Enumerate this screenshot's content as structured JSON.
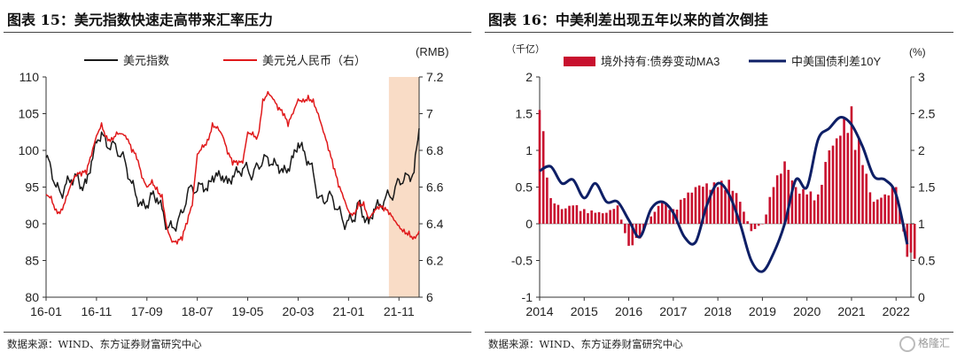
{
  "left": {
    "title": "图表 15：美元指数快速走高带来汇率压力",
    "source": "数据来源：WIND、东方证券财富研究中心",
    "chart_data": {
      "type": "line",
      "x_ticks": [
        "16-01",
        "16-11",
        "17-09",
        "18-07",
        "19-05",
        "20-03",
        "21-01",
        "21-11"
      ],
      "x_range": [
        "2016-01",
        "2022-03"
      ],
      "ylim_left": [
        80,
        110
      ],
      "yticks_left": [
        80,
        85,
        90,
        95,
        100,
        105,
        110
      ],
      "ylim_right": [
        6.0,
        7.2
      ],
      "yticks_right": [
        "6",
        "6.2",
        "6.4",
        "6.6",
        "6.8",
        "7",
        "7.2"
      ],
      "right_axis_unit": "(RMB)",
      "highlight": {
        "from": "2021-09",
        "to": "2022-03",
        "color": "#f9dcc6"
      },
      "legend_placement": "top",
      "series": [
        {
          "name": "美元指数",
          "axis": "left",
          "color": "#1a1a1a",
          "x": [
            "2016-01",
            "2016-02",
            "2016-03",
            "2016-04",
            "2016-05",
            "2016-06",
            "2016-07",
            "2016-08",
            "2016-09",
            "2016-10",
            "2016-11",
            "2016-12",
            "2017-01",
            "2017-02",
            "2017-03",
            "2017-04",
            "2017-05",
            "2017-06",
            "2017-07",
            "2017-08",
            "2017-09",
            "2017-10",
            "2017-11",
            "2017-12",
            "2018-01",
            "2018-02",
            "2018-03",
            "2018-04",
            "2018-05",
            "2018-06",
            "2018-07",
            "2018-08",
            "2018-09",
            "2018-10",
            "2018-11",
            "2018-12",
            "2019-01",
            "2019-02",
            "2019-03",
            "2019-04",
            "2019-05",
            "2019-06",
            "2019-07",
            "2019-08",
            "2019-09",
            "2019-10",
            "2019-11",
            "2019-12",
            "2020-01",
            "2020-02",
            "2020-03",
            "2020-04",
            "2020-05",
            "2020-06",
            "2020-07",
            "2020-08",
            "2020-09",
            "2020-10",
            "2020-11",
            "2020-12",
            "2021-01",
            "2021-02",
            "2021-03",
            "2021-04",
            "2021-05",
            "2021-06",
            "2021-07",
            "2021-08",
            "2021-09",
            "2021-10",
            "2021-11",
            "2021-12",
            "2022-01",
            "2022-02",
            "2022-03"
          ],
          "values": [
            99,
            97.5,
            95,
            94,
            95.5,
            96,
            96.5,
            95,
            95.5,
            98.5,
            101,
            102.5,
            100.5,
            101,
            100,
            99.5,
            97.5,
            95.5,
            93.5,
            92.5,
            92.5,
            94,
            93.5,
            92,
            89.5,
            89.5,
            90,
            91.5,
            94,
            95,
            94.5,
            95.5,
            94.5,
            96.5,
            96.5,
            96.5,
            95.5,
            96.5,
            97,
            97.5,
            97.5,
            96.5,
            98,
            98.5,
            99,
            98,
            98,
            97,
            97.5,
            99,
            101,
            100,
            98.5,
            97,
            93.5,
            93,
            94,
            93,
            92,
            90,
            90.5,
            90.5,
            93,
            91,
            90,
            92,
            92.5,
            93,
            94,
            94,
            96,
            96,
            96.5,
            97,
            103
          ]
        },
        {
          "name": "美元兑人民币（右）",
          "axis": "right",
          "color": "#e0191b",
          "x": [
            "2016-01",
            "2016-02",
            "2016-03",
            "2016-04",
            "2016-05",
            "2016-06",
            "2016-07",
            "2016-08",
            "2016-09",
            "2016-10",
            "2016-11",
            "2016-12",
            "2017-01",
            "2017-02",
            "2017-03",
            "2017-04",
            "2017-05",
            "2017-06",
            "2017-07",
            "2017-08",
            "2017-09",
            "2017-10",
            "2017-11",
            "2017-12",
            "2018-01",
            "2018-02",
            "2018-03",
            "2018-04",
            "2018-05",
            "2018-06",
            "2018-07",
            "2018-08",
            "2018-09",
            "2018-10",
            "2018-11",
            "2018-12",
            "2019-01",
            "2019-02",
            "2019-03",
            "2019-04",
            "2019-05",
            "2019-06",
            "2019-07",
            "2019-08",
            "2019-09",
            "2019-10",
            "2019-11",
            "2019-12",
            "2020-01",
            "2020-02",
            "2020-03",
            "2020-04",
            "2020-05",
            "2020-06",
            "2020-07",
            "2020-08",
            "2020-09",
            "2020-10",
            "2020-11",
            "2020-12",
            "2021-01",
            "2021-02",
            "2021-03",
            "2021-04",
            "2021-05",
            "2021-06",
            "2021-07",
            "2021-08",
            "2021-09",
            "2021-10",
            "2021-11",
            "2021-12",
            "2022-01",
            "2022-02",
            "2022-03"
          ],
          "values": [
            6.56,
            6.55,
            6.48,
            6.48,
            6.55,
            6.62,
            6.66,
            6.66,
            6.67,
            6.77,
            6.88,
            6.95,
            6.88,
            6.87,
            6.9,
            6.89,
            6.86,
            6.79,
            6.75,
            6.65,
            6.6,
            6.64,
            6.6,
            6.56,
            6.38,
            6.3,
            6.29,
            6.31,
            6.4,
            6.5,
            6.78,
            6.83,
            6.86,
            6.95,
            6.93,
            6.88,
            6.78,
            6.72,
            6.72,
            6.73,
            6.9,
            6.9,
            6.88,
            7.08,
            7.12,
            7.08,
            7.02,
            6.99,
            6.93,
            7.0,
            7.08,
            7.08,
            7.1,
            7.08,
            7.0,
            6.9,
            6.8,
            6.7,
            6.6,
            6.54,
            6.47,
            6.46,
            6.52,
            6.52,
            6.43,
            6.46,
            6.48,
            6.47,
            6.45,
            6.42,
            6.39,
            6.37,
            6.36,
            6.33,
            6.36
          ]
        }
      ]
    }
  },
  "right": {
    "title": "图表 16：中美利差出现五年以来的首次倒挂",
    "source": "数据来源：WIND、东方证券财富研究中心",
    "chart_data": {
      "type": "bar",
      "x_ticks": [
        "2014",
        "2015",
        "2016",
        "2017",
        "2018",
        "2019",
        "2020",
        "2021",
        "2022"
      ],
      "x_range": [
        "2014-01",
        "2022-05"
      ],
      "ylim_left": [
        -1,
        2
      ],
      "yticks_left": [
        "-1",
        "-0.5",
        "0",
        "0.5",
        "1",
        "1.5",
        "2"
      ],
      "left_axis_unit": "（千亿）",
      "ylim_right": [
        0,
        3
      ],
      "yticks_right": [
        "0",
        "0.5",
        "1",
        "1.5",
        "2",
        "2.5",
        "3"
      ],
      "right_axis_unit": "(%)",
      "legend_placement": "top",
      "series": [
        {
          "name": "境外持有:债券变动MA3",
          "kind": "bar",
          "axis": "left",
          "color": "#c8102e",
          "x": [
            "2014-01",
            "2014-04",
            "2014-07",
            "2014-10",
            "2015-01",
            "2015-04",
            "2015-07",
            "2015-10",
            "2016-01",
            "2016-04",
            "2016-07",
            "2016-10",
            "2017-01",
            "2017-04",
            "2017-07",
            "2017-10",
            "2018-01",
            "2018-04",
            "2018-07",
            "2018-10",
            "2019-01",
            "2019-04",
            "2019-07",
            "2019-10",
            "2020-01",
            "2020-04",
            "2020-07",
            "2020-10",
            "2021-01",
            "2021-04",
            "2021-07",
            "2021-10",
            "2022-01",
            "2022-04"
          ],
          "values": [
            1.55,
            0.35,
            0.2,
            0.25,
            0.2,
            0.15,
            0.15,
            0.25,
            -0.3,
            -0.2,
            0.1,
            0.3,
            0.2,
            0.35,
            0.5,
            0.55,
            0.5,
            0.6,
            0.3,
            -0.1,
            0.0,
            0.5,
            0.85,
            0.5,
            0.4,
            0.4,
            1.0,
            1.2,
            1.6,
            0.8,
            0.3,
            0.4,
            0.5,
            -0.45
          ]
        },
        {
          "name": "中美国债利差10Y",
          "kind": "line",
          "axis": "right",
          "color": "#0e1f66",
          "x": [
            "2014-01",
            "2014-04",
            "2014-07",
            "2014-10",
            "2015-01",
            "2015-04",
            "2015-07",
            "2015-10",
            "2016-01",
            "2016-04",
            "2016-07",
            "2016-10",
            "2017-01",
            "2017-04",
            "2017-07",
            "2017-10",
            "2018-01",
            "2018-04",
            "2018-07",
            "2018-10",
            "2019-01",
            "2019-04",
            "2019-07",
            "2019-10",
            "2020-01",
            "2020-04",
            "2020-07",
            "2020-10",
            "2021-01",
            "2021-04",
            "2021-07",
            "2021-10",
            "2022-01",
            "2022-04"
          ],
          "values": [
            1.72,
            1.78,
            1.55,
            1.6,
            1.35,
            1.55,
            1.3,
            1.3,
            1.05,
            0.82,
            1.2,
            1.3,
            1.15,
            0.82,
            0.75,
            1.25,
            1.55,
            1.4,
            1.0,
            0.5,
            0.35,
            0.6,
            1.0,
            1.6,
            1.5,
            2.15,
            2.3,
            2.45,
            2.35,
            2.05,
            1.65,
            1.6,
            1.4,
            0.72
          ]
        }
      ]
    }
  },
  "watermark": {
    "text": "格隆汇"
  }
}
